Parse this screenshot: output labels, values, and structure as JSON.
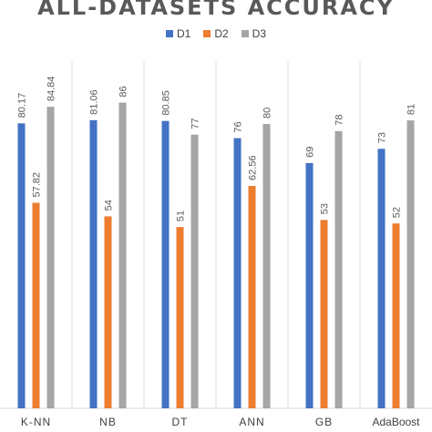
{
  "chart_data": {
    "type": "bar",
    "title": "ALL-DATASETS ACCURACY",
    "categories": [
      "K-NN",
      "NB",
      "DT",
      "ANN",
      "GB",
      "AdaBoost"
    ],
    "series": [
      {
        "name": "D1",
        "color": "#4472C4",
        "values": [
          80.17,
          81.06,
          80.85,
          76,
          69,
          73
        ],
        "labels": [
          "80.17",
          "81.06",
          "80.85",
          "76",
          "69",
          "73"
        ]
      },
      {
        "name": "D2",
        "color": "#ED7D31",
        "values": [
          57.82,
          54,
          51,
          62.56,
          53,
          52
        ],
        "labels": [
          "57.82",
          "54",
          "51",
          "62.56",
          "53",
          "52"
        ]
      },
      {
        "name": "D3",
        "color": "#A5A5A5",
        "values": [
          84.84,
          86,
          77,
          80,
          78,
          81
        ],
        "labels": [
          "84.84",
          "86",
          "77",
          "80",
          "78",
          "81"
        ]
      }
    ],
    "ylim": [
      0,
      100
    ],
    "grid": false,
    "legend_position": "top"
  }
}
